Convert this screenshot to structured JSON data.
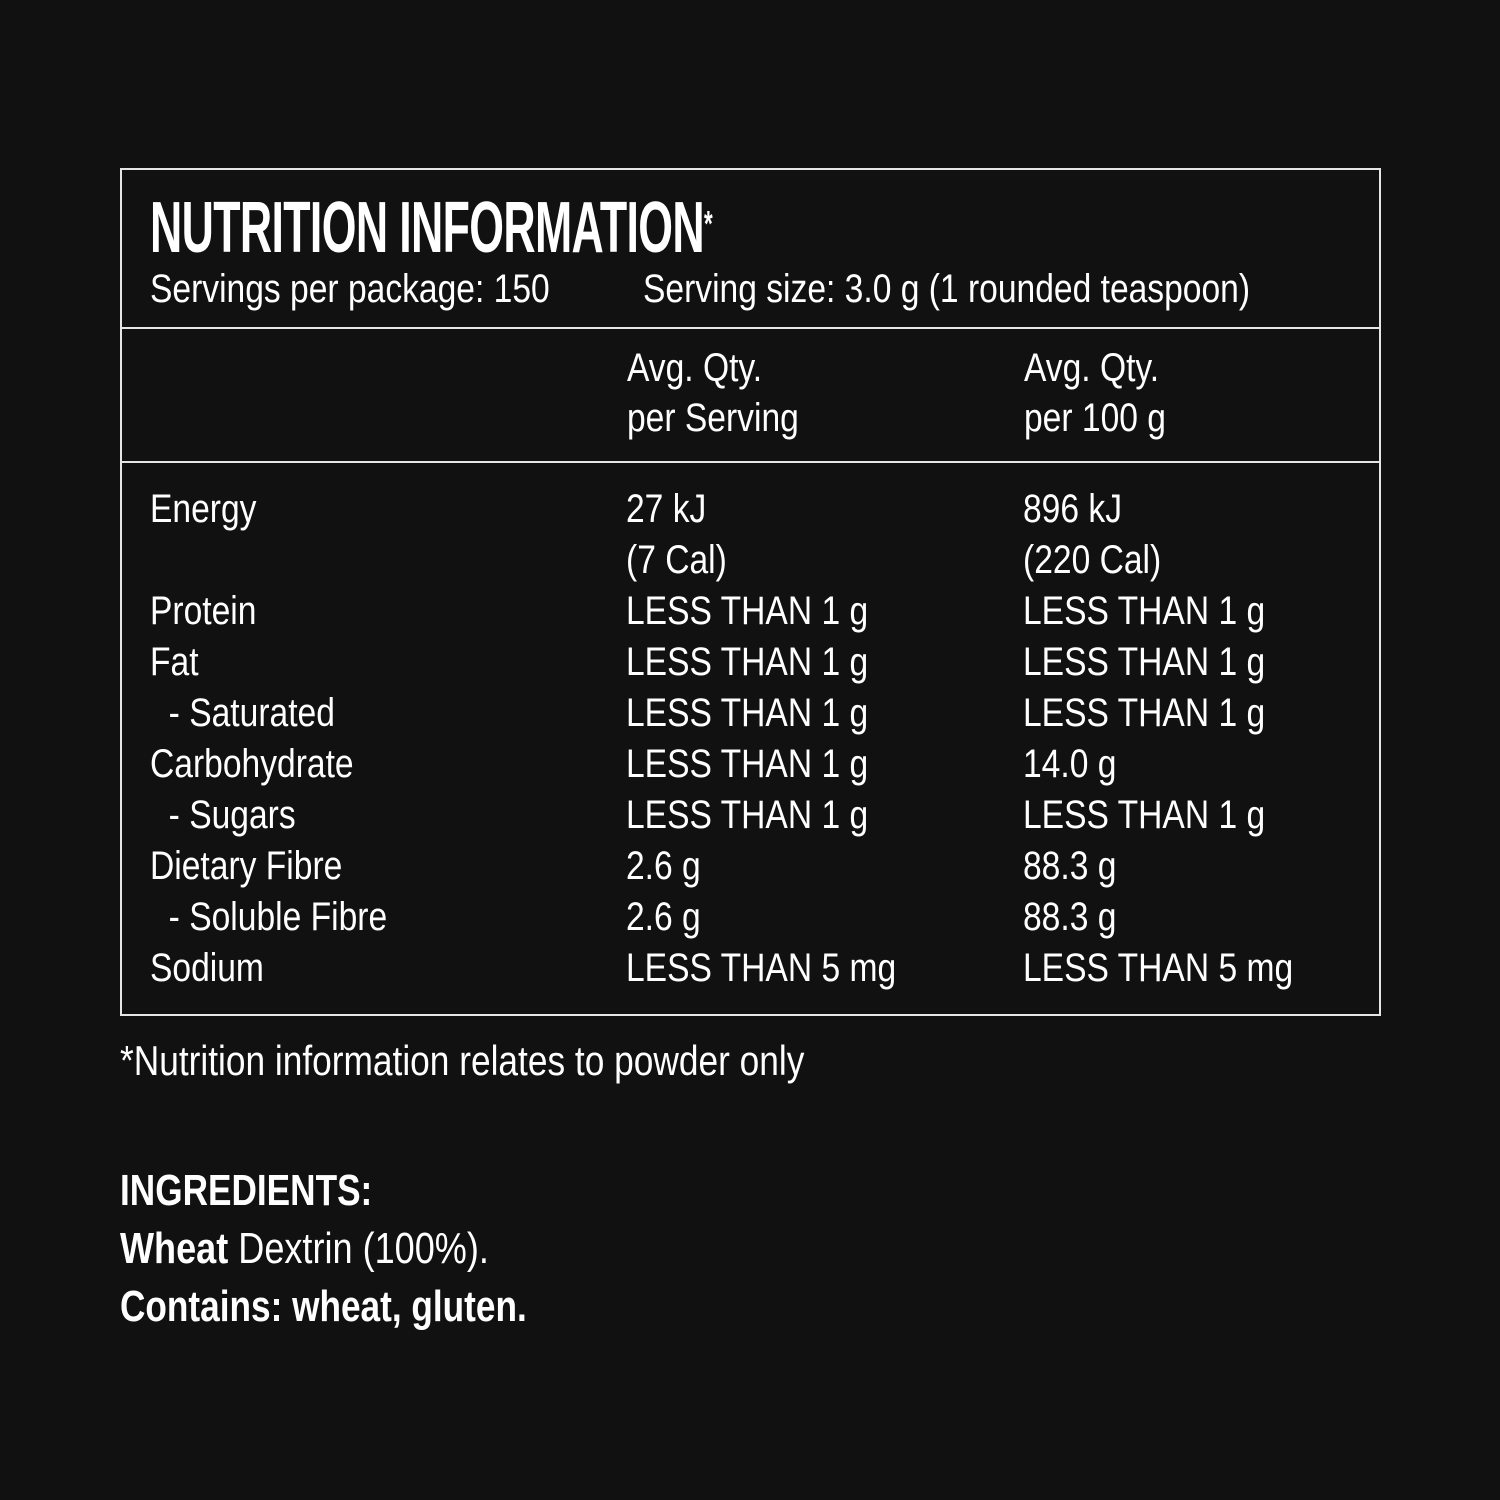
{
  "panel": {
    "title": "NUTRITION INFORMATION",
    "title_mark": "*",
    "servings_per_package": "Servings per package: 150",
    "serving_size": "Serving size: 3.0 g (1 rounded teaspoon)"
  },
  "table": {
    "headers": [
      {
        "line1": "Avg. Qty.",
        "line2": "per Serving"
      },
      {
        "line1": "Avg. Qty.",
        "line2": "per 100 g"
      }
    ],
    "rows": [
      {
        "label": "Energy",
        "per_serving": "27 kJ",
        "per_100g": "896 kJ"
      },
      {
        "label": "",
        "per_serving": "(7 Cal)",
        "per_100g": "(220 Cal)"
      },
      {
        "label": "Protein",
        "per_serving": "LESS THAN 1 g",
        "per_100g": "LESS THAN 1 g"
      },
      {
        "label": "Fat",
        "per_serving": "LESS THAN 1 g",
        "per_100g": "LESS THAN 1 g"
      },
      {
        "label": "  - Saturated",
        "per_serving": "LESS THAN 1 g",
        "per_100g": "LESS THAN 1 g"
      },
      {
        "label": "Carbohydrate",
        "per_serving": "LESS THAN 1 g",
        "per_100g": "14.0 g"
      },
      {
        "label": "  - Sugars",
        "per_serving": "LESS THAN 1 g",
        "per_100g": "LESS THAN 1 g"
      },
      {
        "label": "Dietary Fibre",
        "per_serving": "2.6 g",
        "per_100g": "88.3 g"
      },
      {
        "label": "  - Soluble Fibre",
        "per_serving": "2.6 g",
        "per_100g": "88.3 g"
      },
      {
        "label": "Sodium",
        "per_serving": "LESS THAN 5 mg",
        "per_100g": "LESS THAN 5 mg"
      }
    ]
  },
  "footnote": "*Nutrition information relates to powder only",
  "ingredients": {
    "heading": "INGREDIENTS:",
    "allergen_word": "Wheat",
    "rest": " Dextrin (100%).",
    "contains": "Contains: wheat, gluten."
  }
}
